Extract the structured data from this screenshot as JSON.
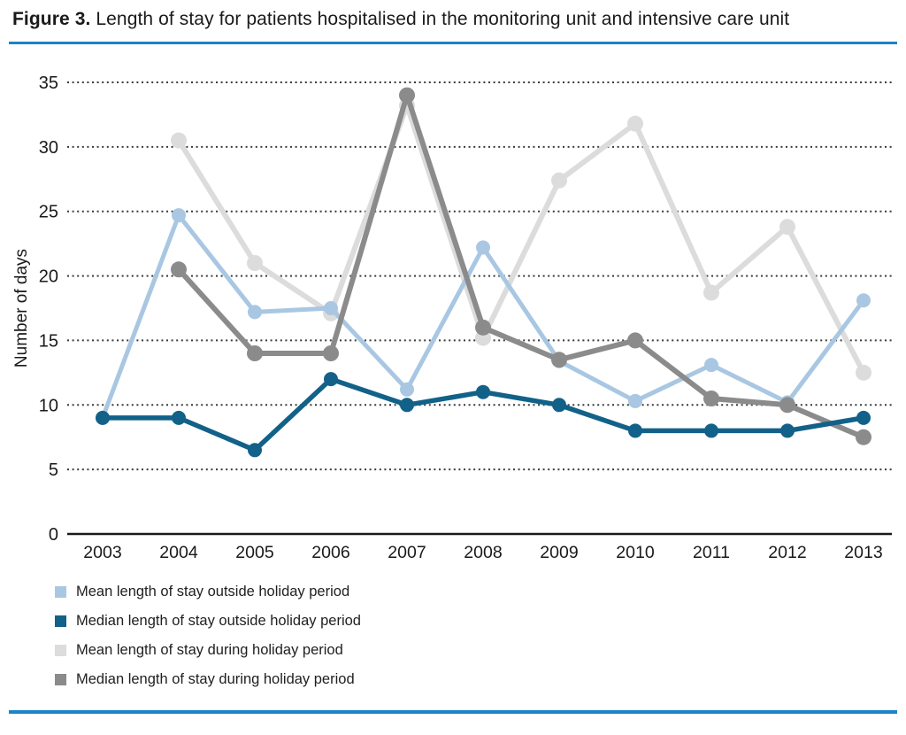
{
  "title": {
    "prefix": "Figure 3.",
    "text": " Length of stay for patients hospitalised in the monitoring unit and intensive care unit"
  },
  "colors": {
    "rule_blue": "#1a84c6",
    "axis_text": "#1a1a1a",
    "gridline": "#3a3a3a",
    "mean_outside": "#a9c7e2",
    "median_outside": "#126189",
    "mean_during": "#dcdcdc",
    "median_during": "#8b8b8b"
  },
  "chart_data": {
    "type": "line",
    "title": "Figure 3. Length of stay for patients hospitalised in the monitoring unit and intensive care unit",
    "xlabel": "",
    "ylabel": "Number of days",
    "ylim": [
      0,
      35
    ],
    "yticks": [
      0,
      5,
      10,
      15,
      20,
      25,
      30,
      35
    ],
    "grid": "horizontal-dotted",
    "legend_position": "bottom-left",
    "x": [
      2003,
      2004,
      2005,
      2006,
      2007,
      2008,
      2009,
      2010,
      2011,
      2012,
      2013
    ],
    "series": [
      {
        "name": "Mean length of stay outside holiday period",
        "color_key": "mean_outside",
        "values": [
          9,
          24.7,
          17.2,
          17.5,
          11.2,
          22.2,
          13.4,
          10.3,
          13.1,
          10.2,
          18.1
        ]
      },
      {
        "name": "Median length of stay outside holiday period",
        "color_key": "median_outside",
        "values": [
          9,
          9,
          6.5,
          12,
          10,
          11,
          10,
          8,
          8,
          8,
          9
        ]
      },
      {
        "name": "Mean length of stay during holiday period",
        "color_key": "mean_during",
        "values": [
          null,
          30.5,
          21,
          17.1,
          33.2,
          15.2,
          27.4,
          31.8,
          18.7,
          23.8,
          12.5
        ]
      },
      {
        "name": "Median length of stay during holiday period",
        "color_key": "median_during",
        "values": [
          null,
          20.5,
          14,
          14,
          34,
          16,
          13.5,
          15,
          10.5,
          10,
          7.5
        ]
      }
    ]
  }
}
